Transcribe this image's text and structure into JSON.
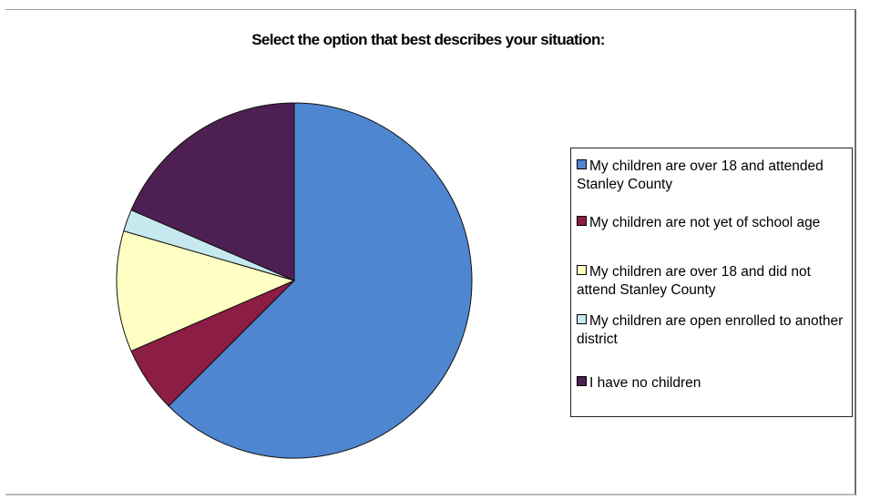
{
  "chart_data": {
    "type": "pie",
    "title": "Select the option that best describes your situation:",
    "categories": [
      "My children are over 18 and attended Stanley County",
      "My children are not yet of school age",
      "My children are over 18 and did not attend Stanley County",
      "My children are open enrolled to another district",
      "I have no children"
    ],
    "values": [
      62.5,
      6.0,
      11.0,
      2.0,
      18.5
    ],
    "colors": [
      "#4f86d0",
      "#8c1d45",
      "#feffc2",
      "#c6e9ef",
      "#4e1f52"
    ],
    "legend_position": "right",
    "start_angle_deg": 0,
    "direction": "clockwise"
  }
}
